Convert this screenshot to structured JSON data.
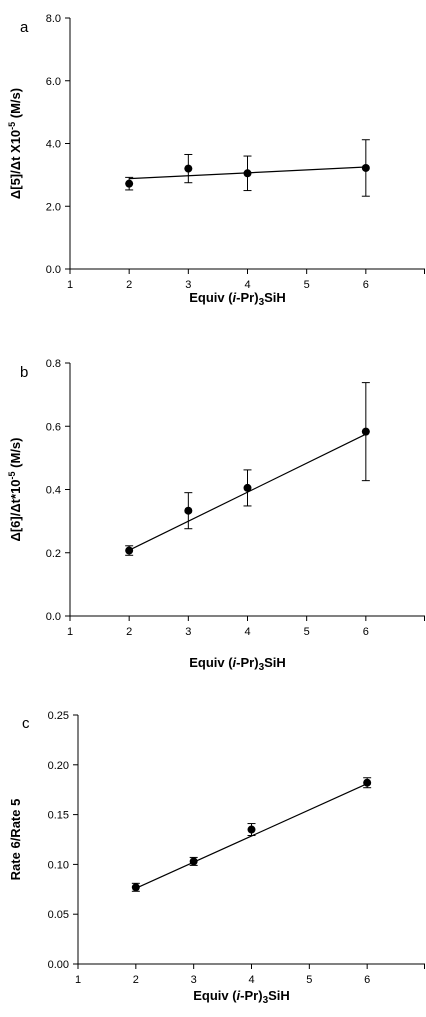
{
  "chart_data": [
    {
      "panel": "a",
      "type": "scatter",
      "xlabel": "Equiv (i-Pr)3SiH",
      "ylabel": "Δ[5]/Δt X10-5 (M/s)",
      "xlim": [
        1,
        7
      ],
      "ylim": [
        0,
        8
      ],
      "x_ticks": [
        "1",
        "2",
        "3",
        "4",
        "5",
        "6"
      ],
      "y_ticks": [
        "0.0",
        "2.0",
        "4.0",
        "6.0",
        "8.0"
      ],
      "points": [
        {
          "x": 2,
          "y": 2.72,
          "err": 0.2
        },
        {
          "x": 3,
          "y": 3.2,
          "err": 0.45
        },
        {
          "x": 4,
          "y": 3.05,
          "err": 0.55
        },
        {
          "x": 6,
          "y": 3.22,
          "err": 0.9
        }
      ],
      "fit_line": {
        "x": [
          2,
          6
        ],
        "y": [
          2.88,
          3.25
        ]
      },
      "grid": false
    },
    {
      "panel": "b",
      "type": "scatter",
      "xlabel": "Equiv (i-Pr)3SiH",
      "ylabel": "Δ[6]/Δt*10-5 (M/s)",
      "xlim": [
        1,
        7
      ],
      "ylim": [
        0,
        0.8
      ],
      "x_ticks": [
        "1",
        "2",
        "3",
        "4",
        "5",
        "6"
      ],
      "y_ticks": [
        "0.0",
        "0.2",
        "0.4",
        "0.6",
        "0.8"
      ],
      "points": [
        {
          "x": 2,
          "y": 0.207,
          "err": 0.015
        },
        {
          "x": 3,
          "y": 0.333,
          "err": 0.057
        },
        {
          "x": 4,
          "y": 0.405,
          "err": 0.057
        },
        {
          "x": 6,
          "y": 0.583,
          "err": 0.155
        }
      ],
      "fit_line": {
        "x": [
          2,
          6
        ],
        "y": [
          0.208,
          0.575
        ]
      },
      "grid": false
    },
    {
      "panel": "c",
      "type": "scatter",
      "xlabel": "Equiv (i-Pr)3SiH",
      "ylabel": "Rate 6/Rate 5",
      "xlim": [
        1,
        7
      ],
      "ylim": [
        0,
        0.25
      ],
      "x_ticks": [
        "1",
        "2",
        "3",
        "4",
        "5",
        "6"
      ],
      "y_ticks": [
        "0.00",
        "0.05",
        "0.10",
        "0.15",
        "0.20",
        "0.25"
      ],
      "points": [
        {
          "x": 2,
          "y": 0.077,
          "err": 0.004
        },
        {
          "x": 3,
          "y": 0.103,
          "err": 0.004
        },
        {
          "x": 4,
          "y": 0.135,
          "err": 0.006
        },
        {
          "x": 6,
          "y": 0.182,
          "err": 0.005
        }
      ],
      "fit_line": {
        "x": [
          2,
          6
        ],
        "y": [
          0.076,
          0.181
        ]
      },
      "grid": false
    }
  ]
}
